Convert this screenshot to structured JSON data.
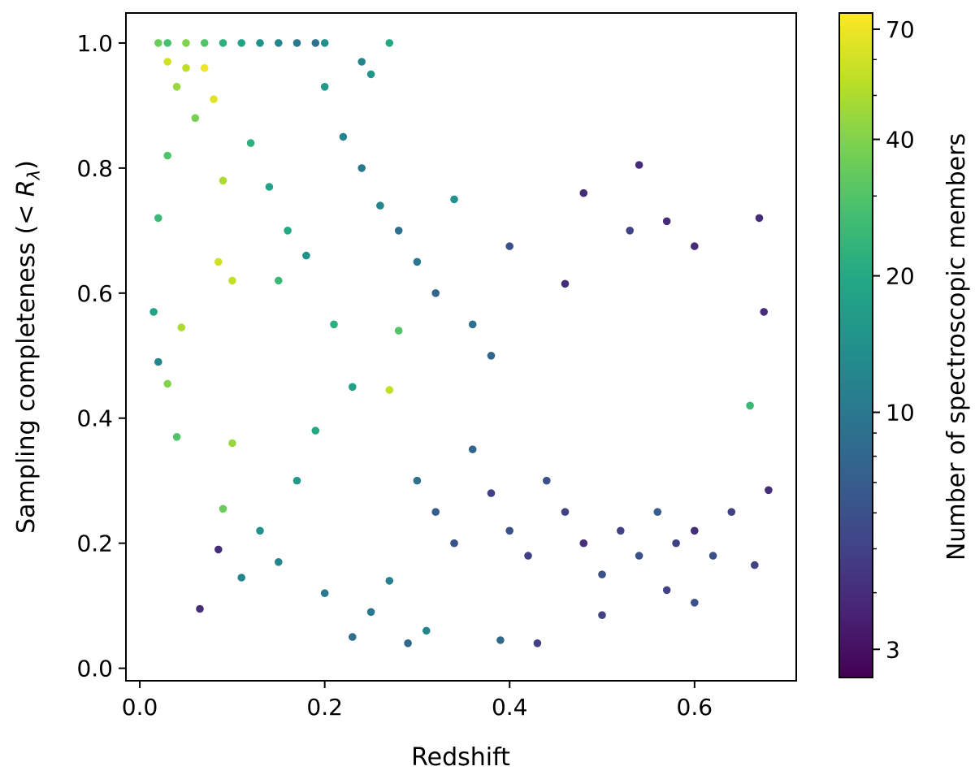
{
  "chart_data": {
    "type": "scatter",
    "xlabel": "Redshift",
    "ylabel": "Sampling completeness (< R_λ)",
    "ylabel_parts": {
      "prefix": "Sampling completeness (",
      "symbol": "< R",
      "subscript": "λ",
      "suffix": ")"
    },
    "xlim": [
      -0.015,
      0.71
    ],
    "ylim": [
      -0.02,
      1.048
    ],
    "x_ticks": [
      0.0,
      0.2,
      0.4,
      0.6
    ],
    "x_tick_labels": [
      "0.0",
      "0.2",
      "0.4",
      "0.6"
    ],
    "y_ticks": [
      0.0,
      0.2,
      0.4,
      0.6,
      0.8,
      1.0
    ],
    "y_tick_labels": [
      "0.0",
      "0.2",
      "0.4",
      "0.6",
      "0.8",
      "1.0"
    ],
    "grid": false,
    "colorbar": {
      "label": "Number of spectroscopic members",
      "scale": "log",
      "colormap": "viridis",
      "range": [
        2.6,
        76
      ],
      "ticks": [
        3,
        10,
        20,
        40,
        70
      ],
      "tick_labels": [
        "3",
        "10",
        "20",
        "40",
        "70"
      ]
    },
    "points": [
      {
        "x": 0.02,
        "y": 1.0,
        "n": 35
      },
      {
        "x": 0.03,
        "y": 1.0,
        "n": 28
      },
      {
        "x": 0.05,
        "y": 1.0,
        "n": 40
      },
      {
        "x": 0.07,
        "y": 1.0,
        "n": 30
      },
      {
        "x": 0.09,
        "y": 1.0,
        "n": 22
      },
      {
        "x": 0.11,
        "y": 1.0,
        "n": 18
      },
      {
        "x": 0.13,
        "y": 1.0,
        "n": 14
      },
      {
        "x": 0.15,
        "y": 1.0,
        "n": 12
      },
      {
        "x": 0.17,
        "y": 1.0,
        "n": 10
      },
      {
        "x": 0.19,
        "y": 1.0,
        "n": 9
      },
      {
        "x": 0.2,
        "y": 1.0,
        "n": 14
      },
      {
        "x": 0.03,
        "y": 0.97,
        "n": 60
      },
      {
        "x": 0.05,
        "y": 0.96,
        "n": 55
      },
      {
        "x": 0.07,
        "y": 0.96,
        "n": 70
      },
      {
        "x": 0.04,
        "y": 0.93,
        "n": 45
      },
      {
        "x": 0.08,
        "y": 0.91,
        "n": 65
      },
      {
        "x": 0.06,
        "y": 0.88,
        "n": 38
      },
      {
        "x": 0.03,
        "y": 0.82,
        "n": 30
      },
      {
        "x": 0.09,
        "y": 0.78,
        "n": 50
      },
      {
        "x": 0.02,
        "y": 0.72,
        "n": 25
      },
      {
        "x": 0.1,
        "y": 0.62,
        "n": 55
      },
      {
        "x": 0.085,
        "y": 0.65,
        "n": 60
      },
      {
        "x": 0.045,
        "y": 0.545,
        "n": 50
      },
      {
        "x": 0.015,
        "y": 0.57,
        "n": 18
      },
      {
        "x": 0.02,
        "y": 0.49,
        "n": 12
      },
      {
        "x": 0.03,
        "y": 0.455,
        "n": 40
      },
      {
        "x": 0.04,
        "y": 0.37,
        "n": 30
      },
      {
        "x": 0.09,
        "y": 0.255,
        "n": 35
      },
      {
        "x": 0.085,
        "y": 0.19,
        "n": 4
      },
      {
        "x": 0.065,
        "y": 0.095,
        "n": 4
      },
      {
        "x": 0.11,
        "y": 0.145,
        "n": 12
      },
      {
        "x": 0.1,
        "y": 0.36,
        "n": 45
      },
      {
        "x": 0.27,
        "y": 0.445,
        "n": 55
      },
      {
        "x": 0.28,
        "y": 0.54,
        "n": 30
      },
      {
        "x": 0.12,
        "y": 0.84,
        "n": 22
      },
      {
        "x": 0.14,
        "y": 0.77,
        "n": 18
      },
      {
        "x": 0.16,
        "y": 0.7,
        "n": 20
      },
      {
        "x": 0.18,
        "y": 0.66,
        "n": 14
      },
      {
        "x": 0.15,
        "y": 0.62,
        "n": 25
      },
      {
        "x": 0.2,
        "y": 0.93,
        "n": 16
      },
      {
        "x": 0.22,
        "y": 0.85,
        "n": 12
      },
      {
        "x": 0.24,
        "y": 0.8,
        "n": 10
      },
      {
        "x": 0.26,
        "y": 0.74,
        "n": 12
      },
      {
        "x": 0.28,
        "y": 0.7,
        "n": 9
      },
      {
        "x": 0.3,
        "y": 0.65,
        "n": 10
      },
      {
        "x": 0.32,
        "y": 0.6,
        "n": 8
      },
      {
        "x": 0.34,
        "y": 0.75,
        "n": 14
      },
      {
        "x": 0.36,
        "y": 0.55,
        "n": 9
      },
      {
        "x": 0.38,
        "y": 0.5,
        "n": 8
      },
      {
        "x": 0.25,
        "y": 0.95,
        "n": 15
      },
      {
        "x": 0.27,
        "y": 1.0,
        "n": 20
      },
      {
        "x": 0.24,
        "y": 0.97,
        "n": 12
      },
      {
        "x": 0.21,
        "y": 0.55,
        "n": 22
      },
      {
        "x": 0.23,
        "y": 0.45,
        "n": 18
      },
      {
        "x": 0.19,
        "y": 0.38,
        "n": 20
      },
      {
        "x": 0.17,
        "y": 0.3,
        "n": 16
      },
      {
        "x": 0.13,
        "y": 0.22,
        "n": 14
      },
      {
        "x": 0.15,
        "y": 0.17,
        "n": 12
      },
      {
        "x": 0.2,
        "y": 0.12,
        "n": 10
      },
      {
        "x": 0.23,
        "y": 0.05,
        "n": 9
      },
      {
        "x": 0.25,
        "y": 0.09,
        "n": 10
      },
      {
        "x": 0.27,
        "y": 0.14,
        "n": 11
      },
      {
        "x": 0.29,
        "y": 0.04,
        "n": 8
      },
      {
        "x": 0.31,
        "y": 0.06,
        "n": 12
      },
      {
        "x": 0.3,
        "y": 0.3,
        "n": 9
      },
      {
        "x": 0.32,
        "y": 0.25,
        "n": 7
      },
      {
        "x": 0.34,
        "y": 0.2,
        "n": 6
      },
      {
        "x": 0.36,
        "y": 0.35,
        "n": 8
      },
      {
        "x": 0.38,
        "y": 0.28,
        "n": 5
      },
      {
        "x": 0.4,
        "y": 0.22,
        "n": 6
      },
      {
        "x": 0.42,
        "y": 0.18,
        "n": 5
      },
      {
        "x": 0.44,
        "y": 0.3,
        "n": 6
      },
      {
        "x": 0.46,
        "y": 0.25,
        "n": 5
      },
      {
        "x": 0.48,
        "y": 0.2,
        "n": 4
      },
      {
        "x": 0.5,
        "y": 0.15,
        "n": 6
      },
      {
        "x": 0.52,
        "y": 0.22,
        "n": 5
      },
      {
        "x": 0.54,
        "y": 0.18,
        "n": 6
      },
      {
        "x": 0.56,
        "y": 0.25,
        "n": 7
      },
      {
        "x": 0.58,
        "y": 0.2,
        "n": 5
      },
      {
        "x": 0.6,
        "y": 0.22,
        "n": 4
      },
      {
        "x": 0.62,
        "y": 0.18,
        "n": 6
      },
      {
        "x": 0.64,
        "y": 0.25,
        "n": 5
      },
      {
        "x": 0.66,
        "y": 0.42,
        "n": 25
      },
      {
        "x": 0.67,
        "y": 0.72,
        "n": 4
      },
      {
        "x": 0.675,
        "y": 0.57,
        "n": 4
      },
      {
        "x": 0.68,
        "y": 0.285,
        "n": 4
      },
      {
        "x": 0.665,
        "y": 0.165,
        "n": 5
      },
      {
        "x": 0.54,
        "y": 0.805,
        "n": 4
      },
      {
        "x": 0.48,
        "y": 0.76,
        "n": 4
      },
      {
        "x": 0.57,
        "y": 0.715,
        "n": 4
      },
      {
        "x": 0.53,
        "y": 0.7,
        "n": 5
      },
      {
        "x": 0.6,
        "y": 0.675,
        "n": 4
      },
      {
        "x": 0.4,
        "y": 0.675,
        "n": 6
      },
      {
        "x": 0.46,
        "y": 0.615,
        "n": 4
      },
      {
        "x": 0.43,
        "y": 0.04,
        "n": 5
      },
      {
        "x": 0.39,
        "y": 0.045,
        "n": 8
      },
      {
        "x": 0.5,
        "y": 0.085,
        "n": 5
      },
      {
        "x": 0.57,
        "y": 0.125,
        "n": 5
      },
      {
        "x": 0.6,
        "y": 0.105,
        "n": 6
      }
    ]
  }
}
